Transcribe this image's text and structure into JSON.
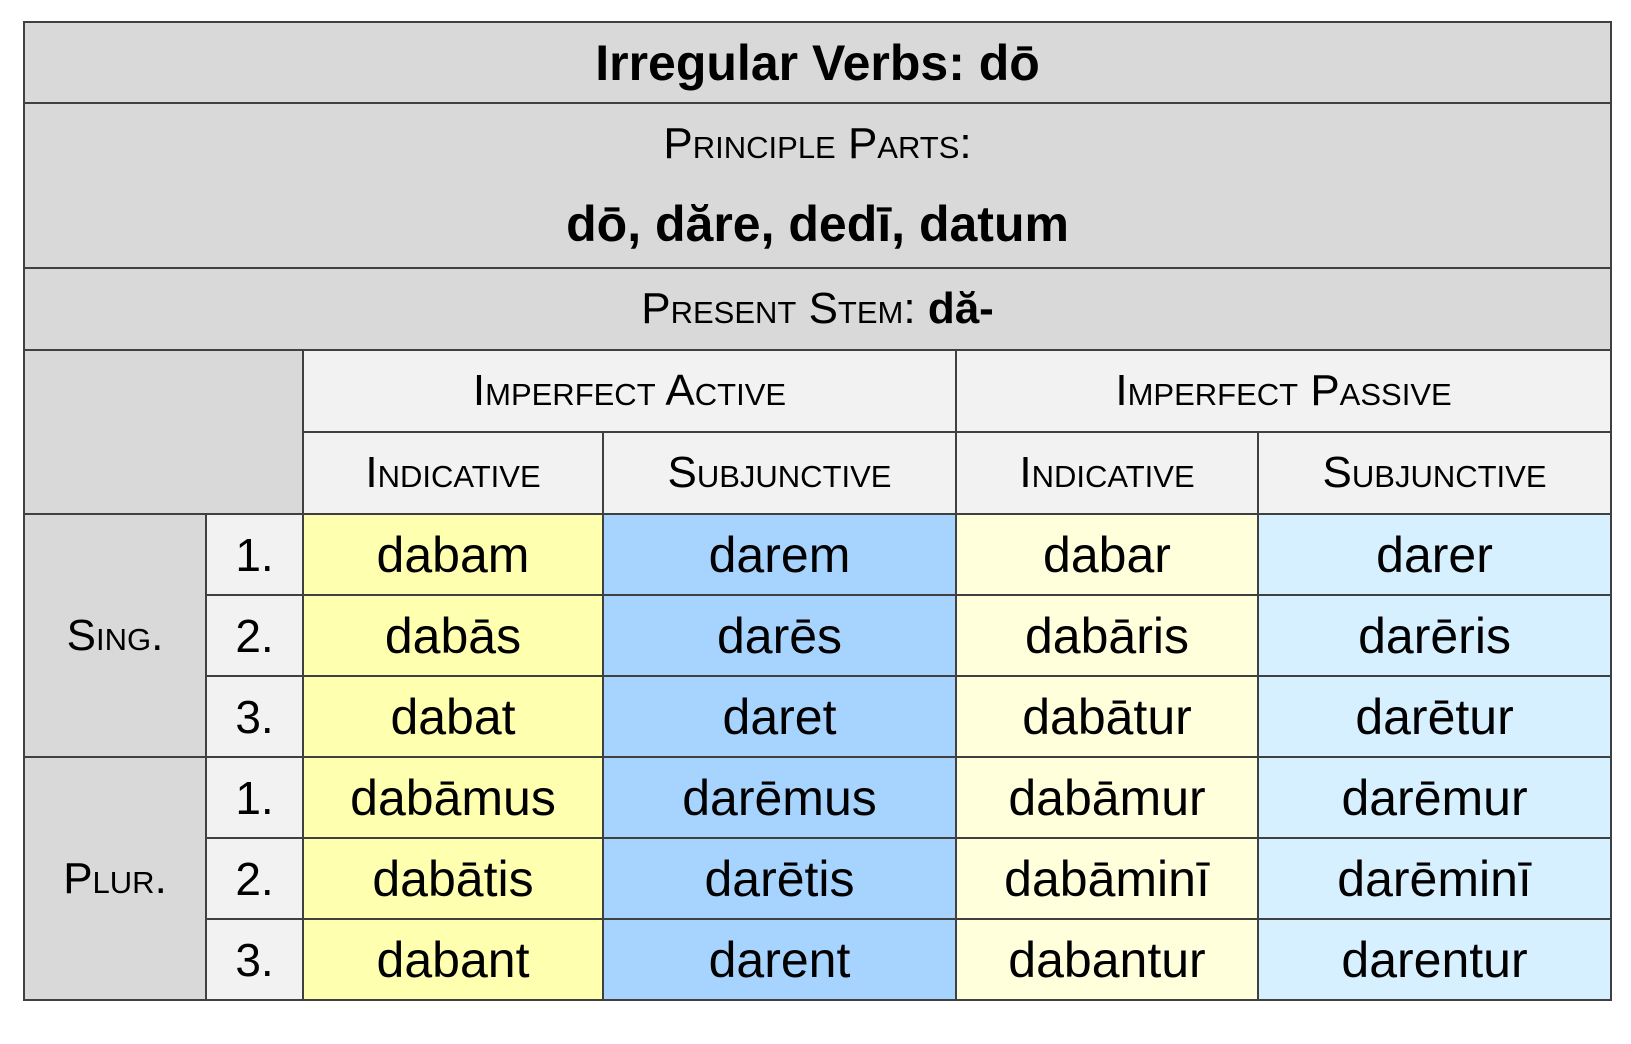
{
  "title": "Irregular Verbs: dō",
  "principle_parts_label": "Principle Parts:",
  "principle_parts": "dō, dăre, dedī, datum",
  "present_stem_label": "Present Stem:",
  "present_stem": "dă-",
  "groups": [
    "Imperfect Active",
    "Imperfect Passive"
  ],
  "moods": [
    "Indicative",
    "Subjunctive",
    "Indicative",
    "Subjunctive"
  ],
  "numbers": [
    "Sing.",
    "Plur."
  ],
  "persons": [
    "1.",
    "2.",
    "3.",
    "1.",
    "2.",
    "3."
  ],
  "colors": {
    "active_indicative": "#ffffb0",
    "active_subjunctive": "#a6d4ff",
    "passive_indicative": "#ffffdc",
    "passive_subjunctive": "#d6f0ff",
    "header": "#d9d9d9"
  },
  "rows": [
    [
      "dabam",
      "darem",
      "dabar",
      "darer"
    ],
    [
      "dabās",
      "darēs",
      "dabāris",
      "darēris"
    ],
    [
      "dabat",
      "daret",
      "dabātur",
      "darētur"
    ],
    [
      "dabāmus",
      "darēmus",
      "dabāmur",
      "darēmur"
    ],
    [
      "dabātis",
      "darētis",
      "dabāminī",
      "darēminī"
    ],
    [
      "dabant",
      "darent",
      "dabantur",
      "darentur"
    ]
  ]
}
